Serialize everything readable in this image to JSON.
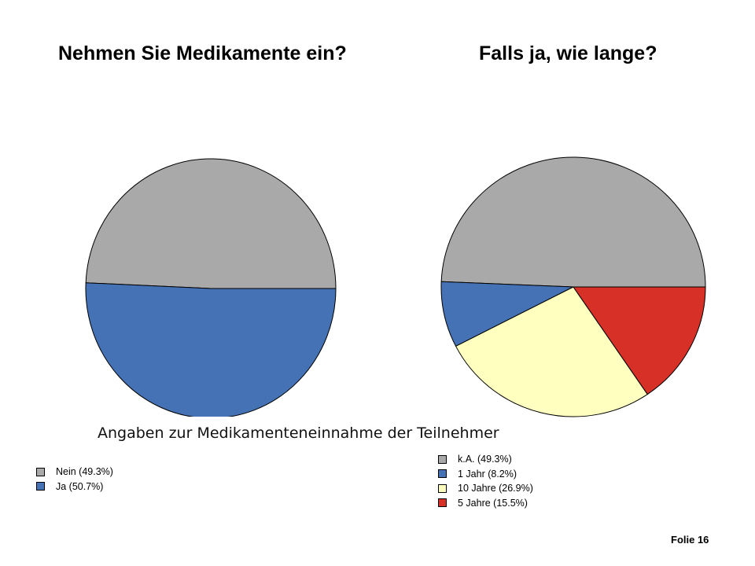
{
  "chart_data": [
    {
      "type": "pie",
      "title": "Nehmen Sie Medikamente ein?",
      "colors": [
        "#a9a9a9",
        "#4472b4"
      ],
      "slices": [
        {
          "label": "Nein (49.3%)",
          "value": 49.3
        },
        {
          "label": "Ja (50.7%)",
          "value": 50.7
        }
      ],
      "legend_position": "bottom-left"
    },
    {
      "type": "pie",
      "title": "Falls ja, wie lange?",
      "colors": [
        "#a9a9a9",
        "#4472b4",
        "#ffffc0",
        "#d63027"
      ],
      "slices": [
        {
          "label": "k.A. (49.3%)",
          "value": 49.3
        },
        {
          "label": "1 Jahr (8.2%)",
          "value": 8.2
        },
        {
          "label": "10 Jahre (26.9%)",
          "value": 26.9
        },
        {
          "label": "5 Jahre (15.5%)",
          "value": 15.5
        }
      ],
      "legend_position": "bottom-center"
    }
  ],
  "caption": "Angaben zur Medikamenteneinnahme der Teilnehmer",
  "slide_number": "Folie 16"
}
